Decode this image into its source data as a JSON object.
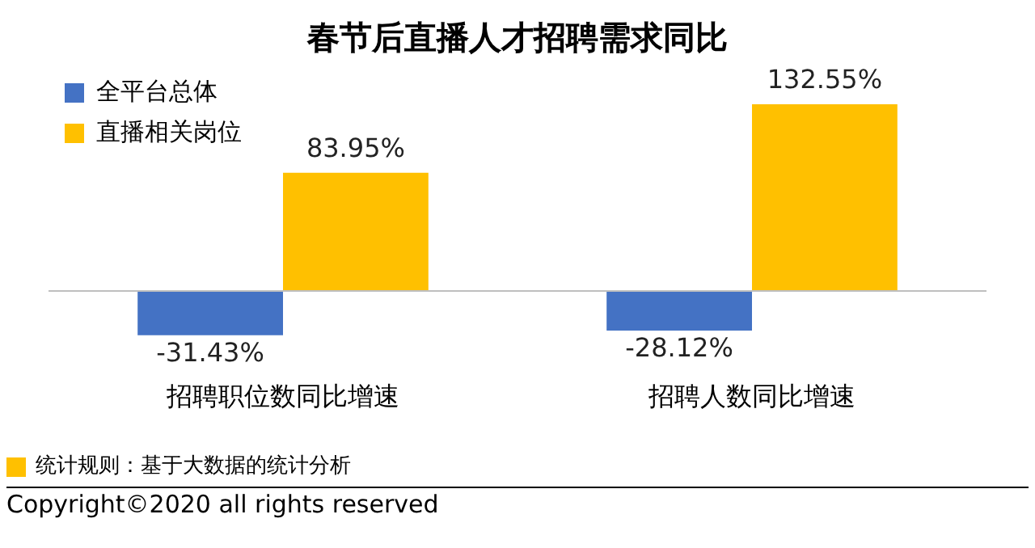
{
  "chart_data": {
    "type": "bar",
    "title": "春节后直播人才招聘需求同比",
    "categories": [
      "招聘职位数同比增速",
      "招聘人数同比增速"
    ],
    "series": [
      {
        "name": "全平台总体",
        "color": "#4472c4",
        "values": [
          -31.43,
          -28.12
        ],
        "value_labels": [
          "-31.43%",
          "-28.12%"
        ]
      },
      {
        "name": "直播相关岗位",
        "color": "#ffc000",
        "values": [
          83.95,
          132.55
        ],
        "value_labels": [
          "83.95%",
          "132.55%"
        ]
      }
    ],
    "legend": "top left",
    "grid": false,
    "annotations": [
      "统计规则：基于大数据的统计分析",
      "Copyright©2020 all rights reserved"
    ]
  }
}
